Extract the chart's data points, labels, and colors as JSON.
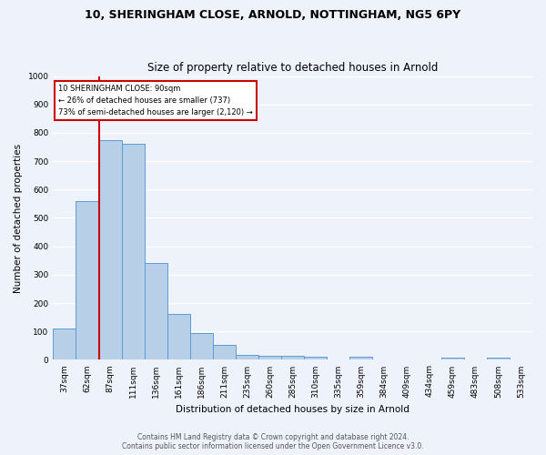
{
  "title1": "10, SHERINGHAM CLOSE, ARNOLD, NOTTINGHAM, NG5 6PY",
  "title2": "Size of property relative to detached houses in Arnold",
  "xlabel": "Distribution of detached houses by size in Arnold",
  "ylabel": "Number of detached properties",
  "categories": [
    "37sqm",
    "62sqm",
    "87sqm",
    "111sqm",
    "136sqm",
    "161sqm",
    "186sqm",
    "211sqm",
    "235sqm",
    "260sqm",
    "285sqm",
    "310sqm",
    "335sqm",
    "359sqm",
    "384sqm",
    "409sqm",
    "434sqm",
    "459sqm",
    "483sqm",
    "508sqm",
    "533sqm"
  ],
  "values": [
    110,
    558,
    775,
    762,
    342,
    163,
    95,
    52,
    18,
    13,
    13,
    10,
    0,
    10,
    0,
    0,
    0,
    8,
    0,
    8,
    0
  ],
  "bar_color": "#b8cfe8",
  "bar_edge_color": "#5b9bd5",
  "vline_x_index": 2,
  "vline_color": "#cc0000",
  "annotation_text": "10 SHERINGHAM CLOSE: 90sqm\n← 26% of detached houses are smaller (737)\n73% of semi-detached houses are larger (2,120) →",
  "annotation_box_color": "white",
  "annotation_box_edge_color": "#cc0000",
  "ylim": [
    0,
    1000
  ],
  "yticks": [
    0,
    100,
    200,
    300,
    400,
    500,
    600,
    700,
    800,
    900,
    1000
  ],
  "footer1": "Contains HM Land Registry data © Crown copyright and database right 2024.",
  "footer2": "Contains public sector information licensed under the Open Government Licence v3.0.",
  "bg_color": "#eef2fb",
  "grid_color": "#ffffff",
  "title1_fontsize": 9,
  "title2_fontsize": 8.5,
  "axis_fontsize": 7.5,
  "tick_fontsize": 6.5,
  "ylabel_fontsize": 7.5,
  "footer_fontsize": 5.5
}
